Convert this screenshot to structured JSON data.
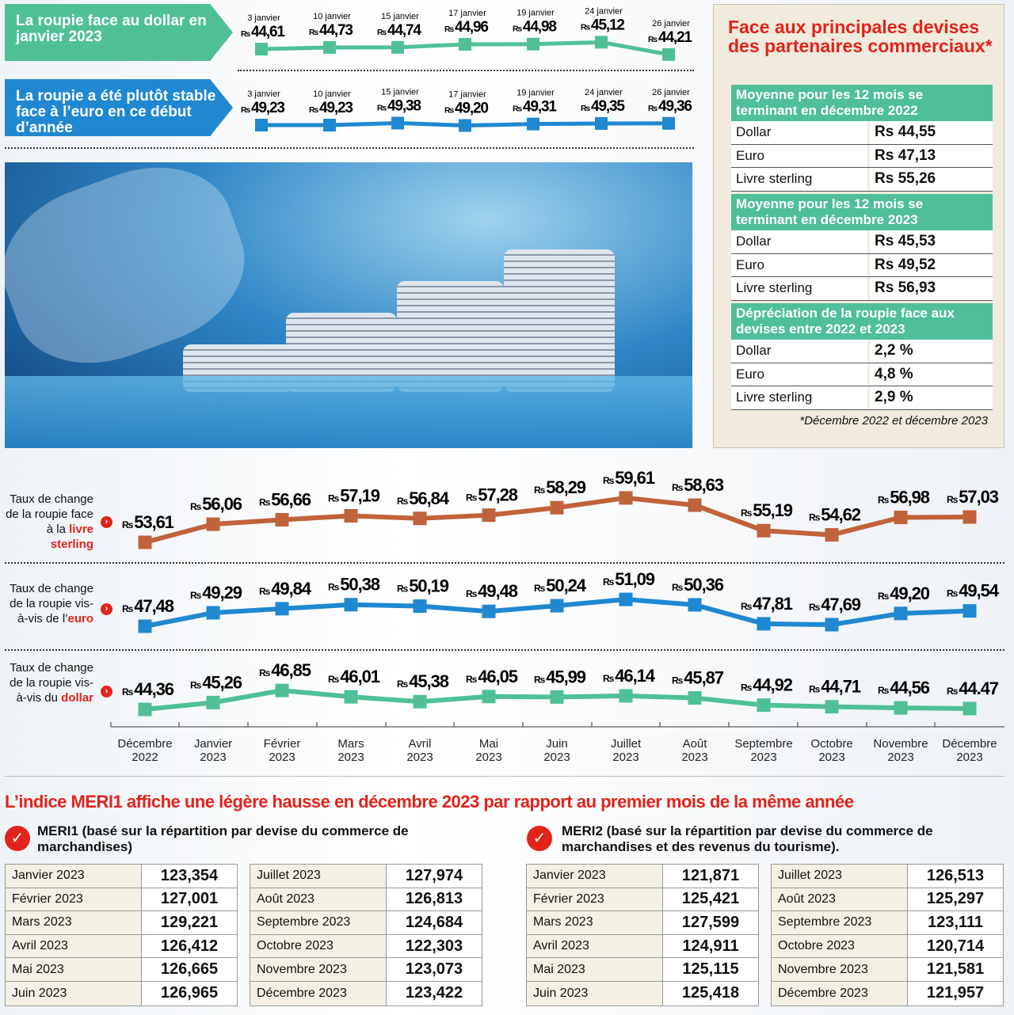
{
  "top": {
    "dollar_banner": "La roupie face au dollar en janvier 2023",
    "euro_banner": "La roupie a été plutôt stable face à l’euro en ce début d’année",
    "currency_prefix": "Rs"
  },
  "panel": {
    "title": "Face aux principales devises des partenaires commerciaux*",
    "sections": [
      {
        "header": "Moyenne pour les 12 mois se terminant en décembre 2022",
        "rows": [
          [
            "Dollar",
            "Rs 44,55"
          ],
          [
            "Euro",
            "Rs 47,13"
          ],
          [
            "Livre sterling",
            "Rs 55,26"
          ]
        ]
      },
      {
        "header": "Moyenne pour les 12 mois se terminant en décembre 2023",
        "rows": [
          [
            "Dollar",
            "Rs 45,53"
          ],
          [
            "Euro",
            "Rs 49,52"
          ],
          [
            "Livre sterling",
            "Rs 56,93"
          ]
        ]
      },
      {
        "header": "Dépréciation de la roupie face aux devises entre 2022 et 2023",
        "rows": [
          [
            "Dollar",
            "2,2 %"
          ],
          [
            "Euro",
            "4,8 %"
          ],
          [
            "Livre sterling",
            "2,9 %"
          ]
        ]
      }
    ],
    "footnote": "*Décembre 2022 et décembre 2023"
  },
  "row_labels": {
    "sterling": {
      "text": "Taux de change de la roupie face à la ",
      "em": "livre sterling"
    },
    "euro": {
      "text": "Taux de change de la roupie vis-à-vis de l’",
      "em": "euro"
    },
    "dollar": {
      "text": "Taux de change de la roupie vis-à-vis du ",
      "em": "dollar"
    }
  },
  "chart_data": [
    {
      "type": "line",
      "title": "La roupie face au dollar en janvier 2023",
      "color": "#4fc096",
      "x": [
        "3 janvier",
        "10 janvier",
        "15 janvier",
        "17 janvier",
        "19 janvier",
        "24 janvier",
        "26 janvier"
      ],
      "values": [
        44.61,
        44.73,
        44.74,
        44.96,
        44.98,
        45.12,
        44.21
      ],
      "labels": [
        "44,61",
        "44,73",
        "44,74",
        "44,96",
        "44,98",
        "45,12",
        "44,21"
      ]
    },
    {
      "type": "line",
      "title": "La roupie a été plutôt stable face à l’euro en ce début d’année",
      "color": "#1f88d0",
      "x": [
        "3 janvier",
        "10 janvier",
        "15 janvier",
        "17 janvier",
        "19 janvier",
        "24 janvier",
        "26 janvier"
      ],
      "values": [
        49.23,
        49.23,
        49.38,
        49.2,
        49.31,
        49.35,
        49.36
      ],
      "labels": [
        "49,23",
        "49,23",
        "49,38",
        "49,20",
        "49,31",
        "49,35",
        "49,36"
      ]
    },
    {
      "type": "line",
      "series_key": "sterling",
      "color": "#c0623a",
      "x": [
        "Décembre 2022",
        "Janvier 2023",
        "Février 2023",
        "Mars 2023",
        "Avril 2023",
        "Mai 2023",
        "Juin 2023",
        "Juillet 2023",
        "Août 2023",
        "Septembre 2023",
        "Octobre 2023",
        "Novembre 2023",
        "Décembre 2023"
      ],
      "values": [
        53.61,
        56.06,
        56.66,
        57.19,
        56.84,
        57.28,
        58.29,
        59.61,
        58.63,
        55.19,
        54.62,
        56.98,
        57.03
      ],
      "labels": [
        "53,61",
        "56,06",
        "56,66",
        "57,19",
        "56,84",
        "57,28",
        "58,29",
        "59,61",
        "58,63",
        "55,19",
        "54,62",
        "56,98",
        "57,03"
      ]
    },
    {
      "type": "line",
      "series_key": "euro",
      "color": "#1f88d0",
      "x": [
        "Décembre 2022",
        "Janvier 2023",
        "Février 2023",
        "Mars 2023",
        "Avril 2023",
        "Mai 2023",
        "Juin 2023",
        "Juillet 2023",
        "Août 2023",
        "Septembre 2023",
        "Octobre 2023",
        "Novembre 2023",
        "Décembre 2023"
      ],
      "values": [
        47.48,
        49.29,
        49.84,
        50.38,
        50.19,
        49.48,
        50.24,
        51.09,
        50.36,
        47.81,
        47.69,
        49.2,
        49.54
      ],
      "labels": [
        "47,48",
        "49,29",
        "49,84",
        "50,38",
        "50,19",
        "49,48",
        "50,24",
        "51,09",
        "50,36",
        "47,81",
        "47,69",
        "49,20",
        "49,54"
      ]
    },
    {
      "type": "line",
      "series_key": "dollar",
      "color": "#4fc096",
      "x": [
        "Décembre 2022",
        "Janvier 2023",
        "Février 2023",
        "Mars 2023",
        "Avril 2023",
        "Mai 2023",
        "Juin 2023",
        "Juillet 2023",
        "Août 2023",
        "Septembre 2023",
        "Octobre 2023",
        "Novembre 2023",
        "Décembre 2023"
      ],
      "values": [
        44.36,
        45.26,
        46.85,
        46.01,
        45.38,
        46.05,
        45.99,
        46.14,
        45.87,
        44.92,
        44.71,
        44.56,
        44.47
      ],
      "labels": [
        "44,36",
        "45,26",
        "46,85",
        "46,01",
        "45,38",
        "46,05",
        "45,99",
        "46,14",
        "45,87",
        "44,92",
        "44,71",
        "44,56",
        "44.47"
      ]
    }
  ],
  "x_axis": [
    [
      "Décembre",
      "2022"
    ],
    [
      "Janvier",
      "2023"
    ],
    [
      "Février",
      "2023"
    ],
    [
      "Mars",
      "2023"
    ],
    [
      "Avril",
      "2023"
    ],
    [
      "Mai",
      "2023"
    ],
    [
      "Juin",
      "2023"
    ],
    [
      "Juillet",
      "2023"
    ],
    [
      "Août",
      "2023"
    ],
    [
      "Septembre",
      "2023"
    ],
    [
      "Octobre",
      "2023"
    ],
    [
      "Novembre",
      "2023"
    ],
    [
      "Décembre",
      "2023"
    ]
  ],
  "meri": {
    "headline": "L’indice MERI1 affiche une légère hausse en décembre 2023 par rapport au premier mois de la même année",
    "meri1_title": "MERI1 (basé sur la répartition par devise du commerce de marchandises)",
    "meri2_title": "MERI2 (basé sur la répartition par devise du commerce de marchandises et des revenus du tourisme).",
    "meri1": [
      [
        [
          "Janvier 2023",
          "123,354"
        ],
        [
          "Février 2023",
          "127,001"
        ],
        [
          "Mars 2023",
          "129,221"
        ],
        [
          "Avril 2023",
          "126,412"
        ],
        [
          "Mai 2023",
          "126,665"
        ],
        [
          "Juin 2023",
          "126,965"
        ]
      ],
      [
        [
          "Juillet 2023",
          "127,974"
        ],
        [
          "Août 2023",
          "126,813"
        ],
        [
          "Septembre 2023",
          "124,684"
        ],
        [
          "Octobre 2023",
          "122,303"
        ],
        [
          "Novembre 2023",
          "123,073"
        ],
        [
          "Décembre 2023",
          "123,422"
        ]
      ]
    ],
    "meri2": [
      [
        [
          "Janvier 2023",
          "121,871"
        ],
        [
          "Février 2023",
          "125,421"
        ],
        [
          "Mars 2023",
          "127,599"
        ],
        [
          "Avril 2023",
          "124,911"
        ],
        [
          "Mai 2023",
          "125,115"
        ],
        [
          "Juin 2023",
          "125,418"
        ]
      ],
      [
        [
          "Juillet 2023",
          "126,513"
        ],
        [
          "Août 2023",
          "125,297"
        ],
        [
          "Septembre 2023",
          "123,111"
        ],
        [
          "Octobre 2023",
          "120,714"
        ],
        [
          "Novembre 2023",
          "121,581"
        ],
        [
          "Décembre 2023",
          "121,957"
        ]
      ]
    ]
  }
}
